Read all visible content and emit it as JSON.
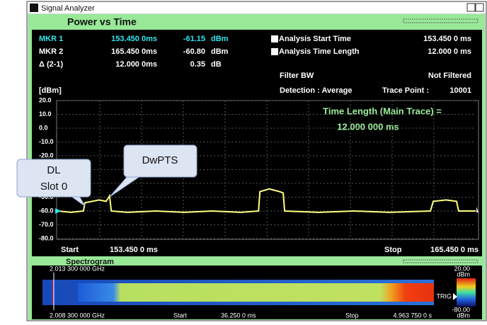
{
  "window_title": "Signal Analyzer",
  "panel_title": "Power vs Time",
  "markers": [
    {
      "name": "MKR 1",
      "time": "153.450 0ms",
      "level": "-61.15",
      "unit": "dBm"
    },
    {
      "name": "MKR 2",
      "time": "165.450 0ms",
      "level": "-60.80",
      "unit": "dBm"
    },
    {
      "name": "Δ (2-1)",
      "time": "12.000 0ms",
      "level": "0.35",
      "unit": "dB"
    }
  ],
  "analysis": {
    "start_label": "Analysis Start Time",
    "start_value": "153.450 0 ms",
    "length_label": "Analysis Time Length",
    "length_value": "12.000 0 ms",
    "filter_label": "Filter BW",
    "filter_value": "Not Filtered",
    "detection": "Detection : Average",
    "trace_point_label": "Trace Point :",
    "trace_point_value": "10001"
  },
  "chart_data": {
    "type": "line",
    "y_unit_label": "[dBm]",
    "annotation": "Time Length (Main Trace) =",
    "annotation_value": "12.000 000 ms",
    "x": [
      153.45,
      153.82,
      154.18,
      154.22,
      154.43,
      154.63,
      154.83,
      154.93,
      154.98,
      155.44,
      156.26,
      157.07,
      157.88,
      158.7,
      159.21,
      159.25,
      159.52,
      159.82,
      159.92,
      159.96,
      160.94,
      161.95,
      162.97,
      164.15,
      164.23,
      164.6,
      164.9,
      164.96,
      165.45
    ],
    "series": [
      {
        "color": "#ffff80",
        "values": [
          -60,
          -61,
          -60,
          -54,
          -53,
          -52,
          -53,
          -49,
          -60,
          -61,
          -60,
          -61,
          -60,
          -61,
          -60,
          -46,
          -44,
          -46,
          -47,
          -60,
          -61,
          -60,
          -61,
          -60,
          -53,
          -52,
          -53,
          -60,
          -60
        ]
      }
    ],
    "xlim": [
      153.45,
      165.45
    ],
    "ylim": [
      -80,
      20
    ],
    "yticks": [
      {
        "value": 20,
        "label": "20.0"
      },
      {
        "value": 10,
        "label": "10.0"
      },
      {
        "value": 0,
        "label": "0.0"
      },
      {
        "value": -10,
        "label": "-10.0"
      },
      {
        "value": -20,
        "label": "-20.0"
      },
      {
        "value": -30,
        "label": "-30.0"
      },
      {
        "value": -40,
        "label": "-40.0"
      },
      {
        "value": -50,
        "label": "-50.0"
      },
      {
        "value": -60,
        "label": "-60.0"
      },
      {
        "value": -70,
        "label": "-70.0"
      },
      {
        "value": -80,
        "label": "-80.0"
      }
    ],
    "grid": true,
    "start_label": "Start",
    "start_value": "153.450 0 ms",
    "stop_label": "Stop",
    "stop_value": "165.450 0 ms"
  },
  "callouts": [
    {
      "lines": [
        "DL",
        "Slot 0"
      ]
    },
    {
      "lines": [
        "DwPTS"
      ]
    }
  ],
  "spectrogram": {
    "title": "Spectrogram",
    "freq_top": "2.013 300 000 GHz",
    "freq_bottom": "2.008 300 000 GHz",
    "start_label": "Start",
    "start_value": "36.250 0 ms",
    "stop_label": "Stop",
    "stop_value": "4.963 750 0 s",
    "scale_top": "20.00",
    "scale_top_unit": "dBm",
    "trig": "TRIG",
    "scale_bottom": "-80.00",
    "scale_bottom_unit": "dBm"
  }
}
